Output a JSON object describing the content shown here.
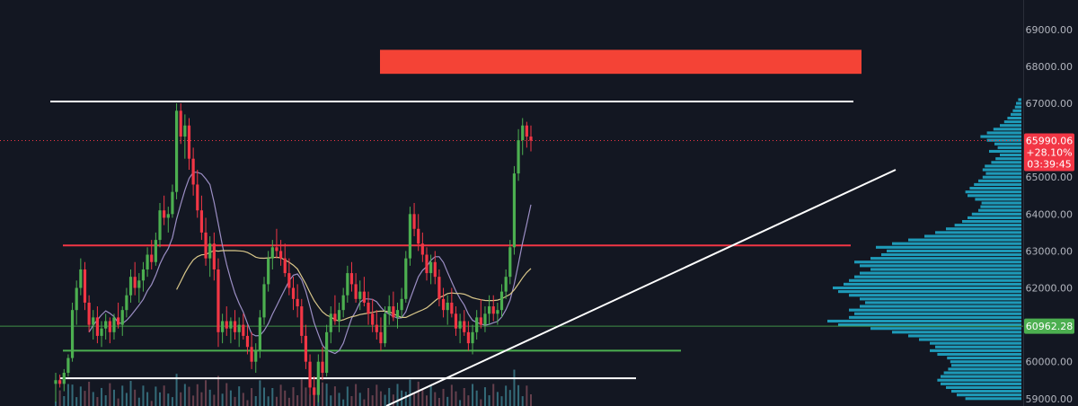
{
  "chart_data": {
    "type": "candlestick",
    "ylim": [
      58800,
      69800
    ],
    "yticks": [
      59000,
      60000,
      61000,
      62000,
      63000,
      64000,
      65000,
      66000,
      67000,
      68000,
      69000
    ],
    "ytick_labels": [
      "59000.00",
      "60000.00",
      "61000.00",
      "62000.00",
      "63000.00",
      "64000.00",
      "65000.00",
      "66000.00",
      "67000.00",
      "68000.00",
      "69000.00"
    ],
    "price_tag": {
      "price": "65990.06",
      "change": "+28.10%",
      "countdown": "03:39:45",
      "value": 65990.06
    },
    "level_tag": {
      "label": "60962.28",
      "value": 60962.28
    },
    "horizontal_levels": [
      {
        "price": 67050,
        "color": "#ffffff"
      },
      {
        "price": 63150,
        "color": "#f23645"
      },
      {
        "price": 60300,
        "color": "#4caf50"
      },
      {
        "price": 59550,
        "color": "#ffffff"
      }
    ],
    "trendline": {
      "from": 58800,
      "to": 65200
    },
    "resistance_zone": {
      "low": 67800,
      "high": 68450,
      "color": "#f44336"
    },
    "candles_ohlc": [
      [
        59400,
        59700,
        58900,
        59500
      ],
      [
        59500,
        59650,
        59300,
        59400
      ],
      [
        59400,
        59800,
        59200,
        59700
      ],
      [
        59700,
        60200,
        59600,
        60100
      ],
      [
        60100,
        61600,
        60000,
        61400
      ],
      [
        61400,
        62200,
        61000,
        62000
      ],
      [
        62000,
        62800,
        61800,
        62500
      ],
      [
        62500,
        62700,
        61400,
        61600
      ],
      [
        61600,
        61800,
        60800,
        61000
      ],
      [
        61000,
        61400,
        60600,
        61200
      ],
      [
        61200,
        61500,
        60500,
        60700
      ],
      [
        60700,
        61100,
        60400,
        60900
      ],
      [
        60900,
        61300,
        60600,
        61100
      ],
      [
        61100,
        61200,
        60500,
        60800
      ],
      [
        60800,
        61300,
        60600,
        61200
      ],
      [
        61200,
        61600,
        60900,
        61000
      ],
      [
        61000,
        61500,
        60700,
        61400
      ],
      [
        61400,
        62000,
        61200,
        61800
      ],
      [
        61800,
        62500,
        61600,
        62300
      ],
      [
        62300,
        62700,
        61800,
        62000
      ],
      [
        62000,
        62400,
        61600,
        62200
      ],
      [
        62200,
        62700,
        61900,
        62500
      ],
      [
        62500,
        63100,
        62300,
        62900
      ],
      [
        62900,
        63300,
        62500,
        62700
      ],
      [
        62700,
        63500,
        62600,
        63300
      ],
      [
        63300,
        64300,
        63100,
        64100
      ],
      [
        64100,
        64500,
        63700,
        63900
      ],
      [
        63900,
        64200,
        63500,
        64000
      ],
      [
        64000,
        64800,
        63900,
        64600
      ],
      [
        64600,
        67000,
        64400,
        66800
      ],
      [
        66800,
        67000,
        65900,
        66100
      ],
      [
        66100,
        66700,
        65500,
        66400
      ],
      [
        66400,
        66600,
        65200,
        65500
      ],
      [
        65500,
        65800,
        64500,
        64800
      ],
      [
        64800,
        65200,
        63900,
        64100
      ],
      [
        64100,
        64500,
        63300,
        63500
      ],
      [
        63500,
        63900,
        62600,
        62800
      ],
      [
        62800,
        63400,
        62300,
        63200
      ],
      [
        63200,
        63500,
        62200,
        62500
      ],
      [
        62500,
        62800,
        60400,
        60800
      ],
      [
        60800,
        61300,
        60500,
        61100
      ],
      [
        61100,
        61500,
        60700,
        60900
      ],
      [
        60900,
        61200,
        60500,
        61100
      ],
      [
        61100,
        61400,
        60600,
        60800
      ],
      [
        60800,
        61200,
        60400,
        61000
      ],
      [
        61000,
        61300,
        60600,
        60700
      ],
      [
        60700,
        61000,
        60200,
        60400
      ],
      [
        60400,
        60800,
        59800,
        60000
      ],
      [
        60000,
        60500,
        59700,
        60300
      ],
      [
        60300,
        61400,
        60100,
        61200
      ],
      [
        61200,
        62300,
        61000,
        62100
      ],
      [
        62100,
        63000,
        61900,
        62800
      ],
      [
        62800,
        63300,
        62500,
        63100
      ],
      [
        63100,
        63600,
        62800,
        63000
      ],
      [
        63000,
        63300,
        62600,
        62800
      ],
      [
        62800,
        63200,
        62300,
        62400
      ],
      [
        62400,
        62800,
        61800,
        62000
      ],
      [
        62000,
        62300,
        61400,
        61700
      ],
      [
        61700,
        62100,
        61200,
        61500
      ],
      [
        61500,
        61700,
        60500,
        60700
      ],
      [
        60700,
        61000,
        59800,
        60000
      ],
      [
        60000,
        60200,
        59100,
        59300
      ],
      [
        59300,
        59600,
        58800,
        59100
      ],
      [
        59100,
        60200,
        58900,
        60000
      ],
      [
        60000,
        60400,
        59500,
        59700
      ],
      [
        59700,
        61000,
        59600,
        60800
      ],
      [
        60800,
        61500,
        60500,
        61300
      ],
      [
        61300,
        61800,
        61000,
        61100
      ],
      [
        61100,
        61600,
        60800,
        61400
      ],
      [
        61400,
        62000,
        61200,
        61800
      ],
      [
        61800,
        62600,
        61600,
        62400
      ],
      [
        62400,
        62700,
        61900,
        62100
      ],
      [
        62100,
        62400,
        61600,
        61700
      ],
      [
        61700,
        62200,
        61400,
        61900
      ],
      [
        61900,
        62300,
        61500,
        61600
      ],
      [
        61600,
        61900,
        61000,
        61300
      ],
      [
        61300,
        61700,
        60800,
        61000
      ],
      [
        61000,
        61400,
        60600,
        60800
      ],
      [
        60800,
        61200,
        60300,
        60500
      ],
      [
        60500,
        61500,
        60400,
        61300
      ],
      [
        61300,
        61800,
        61000,
        61500
      ],
      [
        61500,
        61900,
        61100,
        61200
      ],
      [
        61200,
        61600,
        60900,
        61400
      ],
      [
        61400,
        62000,
        61200,
        61700
      ],
      [
        61700,
        63000,
        61600,
        62800
      ],
      [
        62800,
        64200,
        62600,
        64000
      ],
      [
        64000,
        64300,
        63400,
        63600
      ],
      [
        63600,
        64000,
        63000,
        63200
      ],
      [
        63200,
        63500,
        62700,
        62900
      ],
      [
        62900,
        63100,
        62200,
        62400
      ],
      [
        62400,
        62900,
        62100,
        62700
      ],
      [
        62700,
        63000,
        62100,
        62300
      ],
      [
        62300,
        62500,
        61500,
        61700
      ],
      [
        61700,
        62000,
        61200,
        61400
      ],
      [
        61400,
        61800,
        61000,
        61600
      ],
      [
        61600,
        62000,
        61200,
        61300
      ],
      [
        61300,
        61500,
        60700,
        60900
      ],
      [
        60900,
        61300,
        60500,
        61100
      ],
      [
        61100,
        61400,
        60700,
        60800
      ],
      [
        60800,
        61100,
        60300,
        60500
      ],
      [
        60500,
        61000,
        60200,
        60800
      ],
      [
        60800,
        61400,
        60600,
        61200
      ],
      [
        61200,
        61700,
        60900,
        61000
      ],
      [
        61000,
        61500,
        60800,
        61300
      ],
      [
        61300,
        61800,
        61000,
        61500
      ],
      [
        61500,
        61800,
        61100,
        61300
      ],
      [
        61300,
        61600,
        61000,
        61400
      ],
      [
        61400,
        62100,
        61200,
        61900
      ],
      [
        61900,
        62500,
        61700,
        62300
      ],
      [
        62300,
        63300,
        62100,
        63100
      ],
      [
        63100,
        65300,
        62900,
        65100
      ],
      [
        65100,
        66300,
        64900,
        66000
      ],
      [
        66000,
        66600,
        65600,
        66400
      ],
      [
        66400,
        66500,
        65800,
        66100
      ],
      [
        66100,
        66400,
        65700,
        65990
      ]
    ],
    "volume_profile": [
      [
        59000,
        5.2
      ],
      [
        59100,
        6.0
      ],
      [
        59200,
        6.5
      ],
      [
        59300,
        7.0
      ],
      [
        59400,
        7.5
      ],
      [
        59500,
        7.8
      ],
      [
        59600,
        7.5
      ],
      [
        59700,
        7.2
      ],
      [
        59800,
        6.8
      ],
      [
        59900,
        6.5
      ],
      [
        60000,
        6.6
      ],
      [
        60100,
        6.9
      ],
      [
        60200,
        7.8
      ],
      [
        60300,
        8.5
      ],
      [
        60400,
        8.0
      ],
      [
        60500,
        8.5
      ],
      [
        60600,
        9.5
      ],
      [
        60700,
        10.5
      ],
      [
        60800,
        12.0
      ],
      [
        60900,
        14.0
      ],
      [
        61000,
        17.0
      ],
      [
        61100,
        18.0
      ],
      [
        61200,
        16.0
      ],
      [
        61300,
        15.5
      ],
      [
        61400,
        16.0
      ],
      [
        61500,
        15.0
      ],
      [
        61600,
        14.5
      ],
      [
        61700,
        15.0
      ],
      [
        61800,
        16.0
      ],
      [
        61900,
        17.0
      ],
      [
        62000,
        17.5
      ],
      [
        62100,
        16.5
      ],
      [
        62200,
        16.0
      ],
      [
        62300,
        15.5
      ],
      [
        62400,
        15.0
      ],
      [
        62500,
        14.0
      ],
      [
        62600,
        15.0
      ],
      [
        62700,
        15.5
      ],
      [
        62800,
        14.0
      ],
      [
        62900,
        13.0
      ],
      [
        63000,
        12.5
      ],
      [
        63100,
        13.5
      ],
      [
        63200,
        12.0
      ],
      [
        63300,
        10.5
      ],
      [
        63400,
        9.0
      ],
      [
        63500,
        8.0
      ],
      [
        63600,
        7.0
      ],
      [
        63700,
        6.2
      ],
      [
        63800,
        5.5
      ],
      [
        63900,
        5.0
      ],
      [
        64000,
        4.6
      ],
      [
        64100,
        4.0
      ],
      [
        64200,
        3.8
      ],
      [
        64300,
        3.7
      ],
      [
        64400,
        4.3
      ],
      [
        64500,
        5.0
      ],
      [
        64600,
        5.2
      ],
      [
        64700,
        4.8
      ],
      [
        64800,
        4.4
      ],
      [
        64900,
        4.0
      ],
      [
        65000,
        3.6
      ],
      [
        65100,
        3.3
      ],
      [
        65200,
        3.6
      ],
      [
        65300,
        3.4
      ],
      [
        65400,
        2.8
      ],
      [
        65500,
        2.4
      ],
      [
        65600,
        2.0
      ],
      [
        65700,
        3.0
      ],
      [
        65800,
        2.2
      ],
      [
        65900,
        2.5
      ],
      [
        66000,
        3.2
      ],
      [
        66100,
        3.8
      ],
      [
        66200,
        3.2
      ],
      [
        66300,
        2.6
      ],
      [
        66400,
        2.0
      ],
      [
        66500,
        1.6
      ],
      [
        66600,
        1.3
      ],
      [
        66700,
        1.0
      ],
      [
        66800,
        0.8
      ],
      [
        66900,
        0.6
      ],
      [
        67000,
        0.5
      ],
      [
        67100,
        0.3
      ]
    ]
  }
}
